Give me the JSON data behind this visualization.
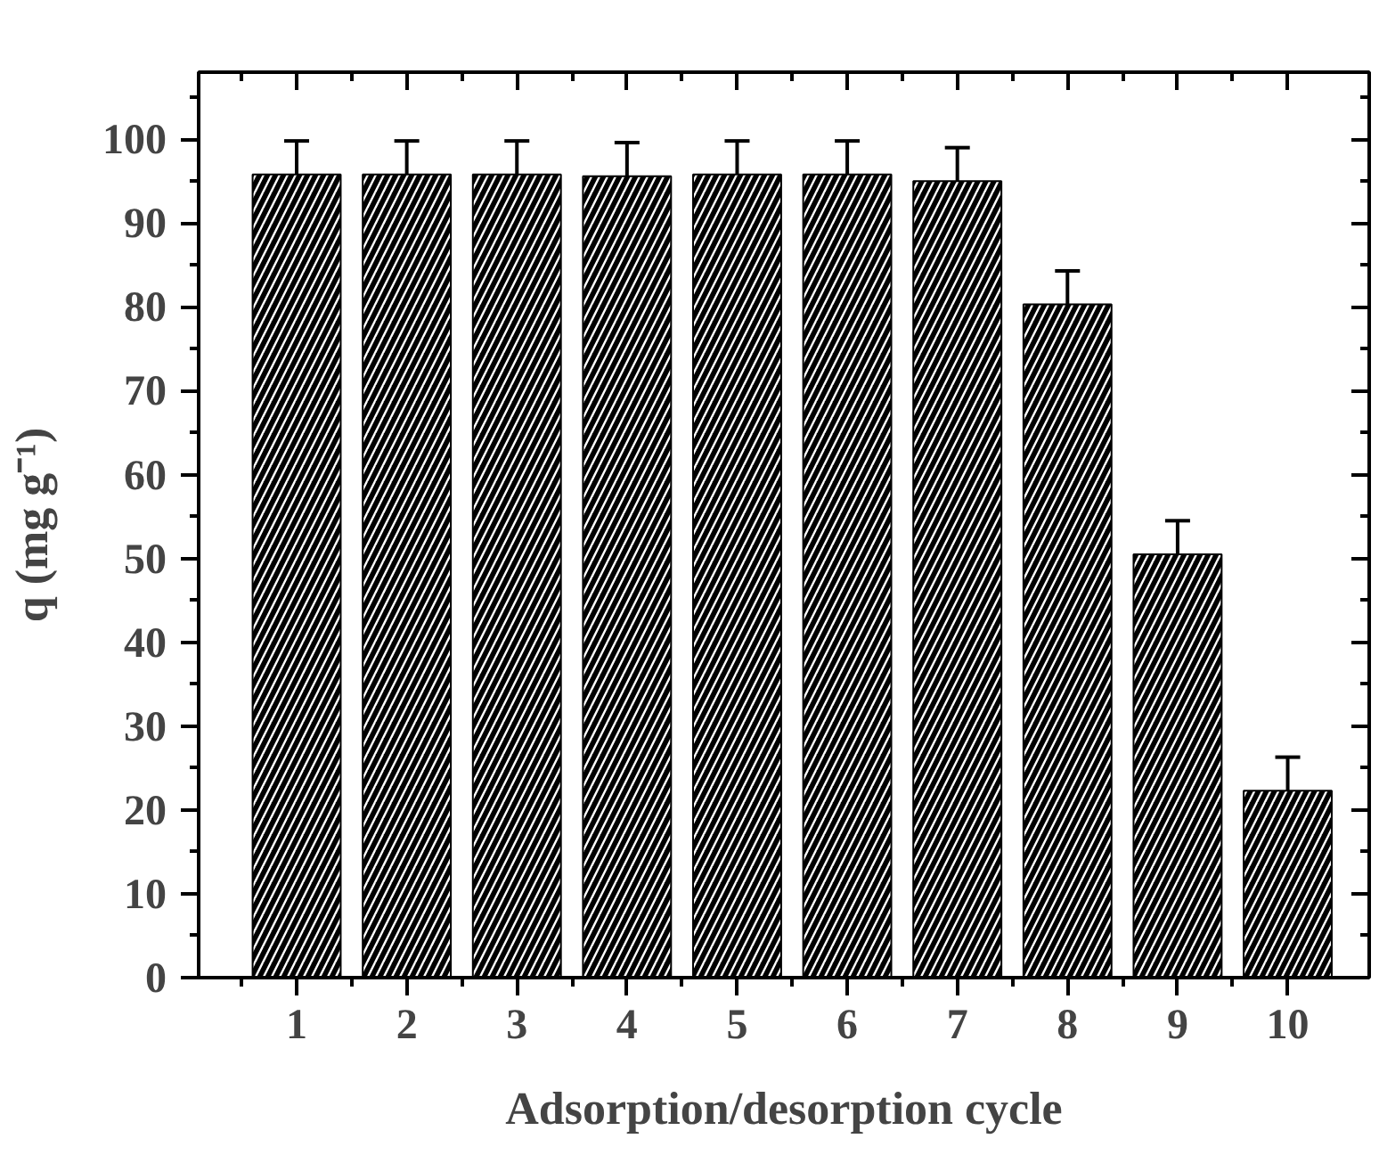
{
  "chart_data": {
    "type": "bar",
    "xlabel": "Adsorption/desorption cycle",
    "ylabel": "q (mg g⁻¹)",
    "categories": [
      "1",
      "2",
      "3",
      "4",
      "5",
      "6",
      "7",
      "8",
      "9",
      "10"
    ],
    "values": [
      95.8,
      95.8,
      95.8,
      95.6,
      95.8,
      95.8,
      95.0,
      80.3,
      50.5,
      22.3
    ],
    "errors": [
      4,
      4,
      4,
      4,
      4,
      4,
      4,
      4,
      4,
      4
    ],
    "color": "#000000",
    "ylim": [
      0,
      108
    ],
    "yticks": [
      0,
      10,
      20,
      30,
      40,
      50,
      60,
      70,
      80,
      90,
      100
    ],
    "grid": false
  }
}
